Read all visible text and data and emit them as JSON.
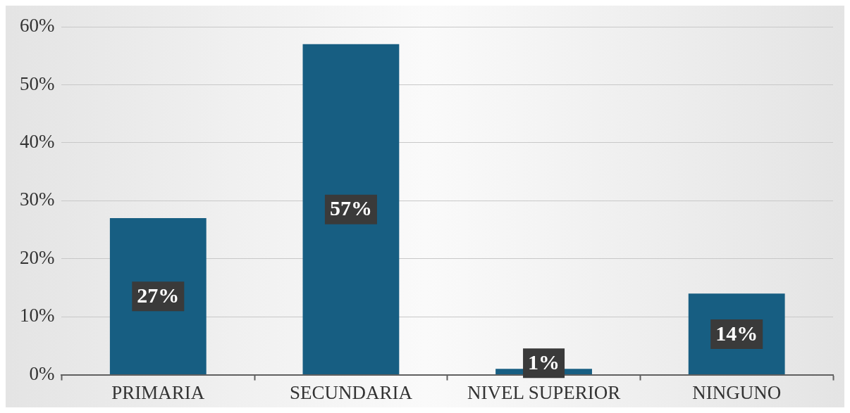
{
  "chart_data": {
    "type": "bar",
    "categories": [
      "PRIMARIA",
      "SECUNDARIA",
      "NIVEL SUPERIOR",
      "NINGUNO"
    ],
    "values": [
      27,
      57,
      1,
      14
    ],
    "value_labels": [
      "27%",
      "57%",
      "1%",
      "14%"
    ],
    "color": "#175e82",
    "ylim": [
      0,
      60
    ],
    "yticks": [
      {
        "value": 0,
        "label": "0%"
      },
      {
        "value": 10,
        "label": "10%"
      },
      {
        "value": 20,
        "label": "20%"
      },
      {
        "value": 30,
        "label": "30%"
      },
      {
        "value": 40,
        "label": "40%"
      },
      {
        "value": 50,
        "label": "50%"
      },
      {
        "value": 60,
        "label": "60%"
      }
    ],
    "grid": "y",
    "legend": false
  }
}
